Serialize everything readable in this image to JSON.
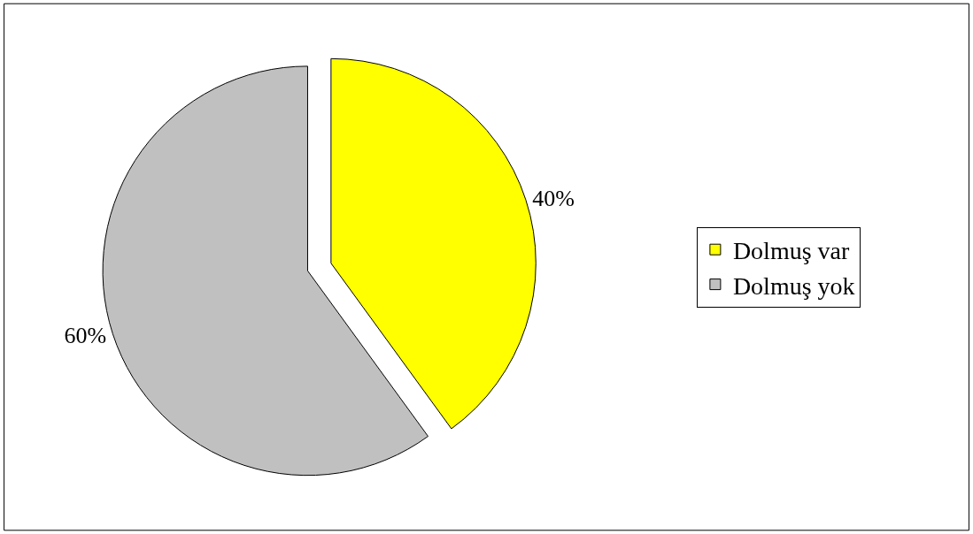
{
  "chart_data": {
    "type": "pie",
    "categories": [
      "Dolmuş var",
      "Dolmuş yok"
    ],
    "values": [
      40,
      60
    ],
    "colors": [
      "#ffff00",
      "#c0c0c0"
    ],
    "value_labels": [
      "40%",
      "60%"
    ],
    "legend": "right"
  }
}
